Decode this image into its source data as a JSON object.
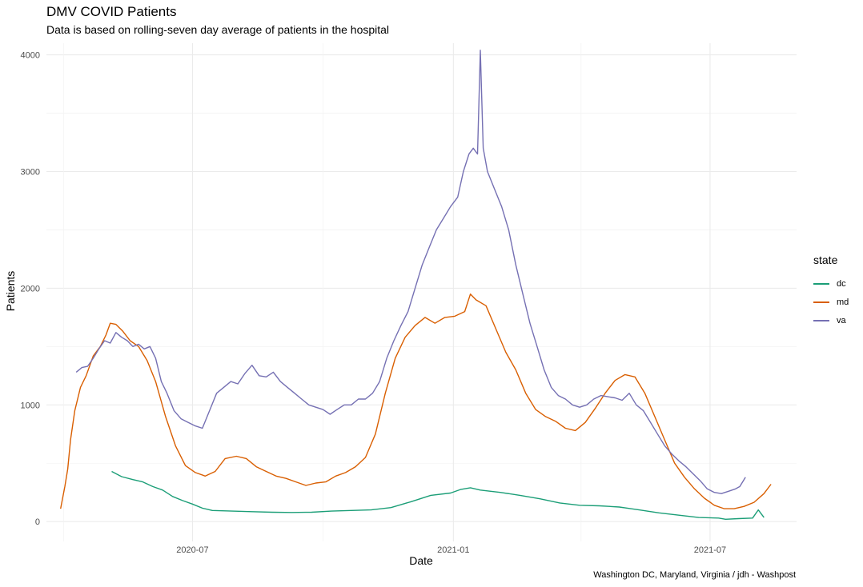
{
  "header": {
    "title": "DMV COVID Patients",
    "subtitle": "Data is based on rolling-seven day average of patients in the hospital"
  },
  "caption": "Washington DC, Maryland, Virginia / jdh - Washpost",
  "legend": {
    "title": "state",
    "items": [
      {
        "label": "dc",
        "color": "#1b9e77"
      },
      {
        "label": "md",
        "color": "#d95f02"
      },
      {
        "label": "va",
        "color": "#7570b3"
      }
    ]
  },
  "chart_data": {
    "type": "line",
    "xlabel": "Date",
    "ylabel": "Patients",
    "xlim": [
      "2020-03-20",
      "2021-08-31"
    ],
    "ylim": [
      -170,
      4100
    ],
    "grid": true,
    "legend_position": "right",
    "x_ticks": [
      {
        "value": "2020-07-01",
        "label": "2020-07"
      },
      {
        "value": "2021-01-01",
        "label": "2021-01"
      },
      {
        "value": "2021-07-01",
        "label": "2021-07"
      }
    ],
    "y_ticks": [
      0,
      1000,
      2000,
      3000,
      4000
    ],
    "series": [
      {
        "name": "dc",
        "color": "#1b9e77",
        "points": [
          [
            "2020-05-05",
            430
          ],
          [
            "2020-05-12",
            385
          ],
          [
            "2020-05-20",
            360
          ],
          [
            "2020-05-27",
            340
          ],
          [
            "2020-06-03",
            300
          ],
          [
            "2020-06-10",
            270
          ],
          [
            "2020-06-17",
            215
          ],
          [
            "2020-06-24",
            180
          ],
          [
            "2020-07-01",
            150
          ],
          [
            "2020-07-08",
            115
          ],
          [
            "2020-07-15",
            95
          ],
          [
            "2020-07-29",
            90
          ],
          [
            "2020-08-12",
            85
          ],
          [
            "2020-08-26",
            80
          ],
          [
            "2020-09-09",
            78
          ],
          [
            "2020-09-23",
            80
          ],
          [
            "2020-10-07",
            90
          ],
          [
            "2020-10-21",
            95
          ],
          [
            "2020-11-04",
            100
          ],
          [
            "2020-11-18",
            120
          ],
          [
            "2020-12-02",
            170
          ],
          [
            "2020-12-16",
            225
          ],
          [
            "2020-12-30",
            245
          ],
          [
            "2021-01-06",
            275
          ],
          [
            "2021-01-13",
            290
          ],
          [
            "2021-01-20",
            270
          ],
          [
            "2021-02-03",
            250
          ],
          [
            "2021-02-17",
            225
          ],
          [
            "2021-03-03",
            195
          ],
          [
            "2021-03-17",
            160
          ],
          [
            "2021-03-31",
            140
          ],
          [
            "2021-04-14",
            135
          ],
          [
            "2021-04-28",
            125
          ],
          [
            "2021-05-12",
            100
          ],
          [
            "2021-05-26",
            75
          ],
          [
            "2021-06-09",
            55
          ],
          [
            "2021-06-23",
            35
          ],
          [
            "2021-07-07",
            30
          ],
          [
            "2021-07-12",
            20
          ],
          [
            "2021-07-21",
            25
          ],
          [
            "2021-07-31",
            30
          ],
          [
            "2021-08-04",
            100
          ],
          [
            "2021-08-08",
            35
          ]
        ]
      },
      {
        "name": "md",
        "color": "#d95f02",
        "points": [
          [
            "2020-03-30",
            110
          ],
          [
            "2020-04-02",
            300
          ],
          [
            "2020-04-04",
            450
          ],
          [
            "2020-04-06",
            700
          ],
          [
            "2020-04-09",
            950
          ],
          [
            "2020-04-13",
            1150
          ],
          [
            "2020-04-17",
            1250
          ],
          [
            "2020-04-22",
            1420
          ],
          [
            "2020-04-27",
            1500
          ],
          [
            "2020-05-01",
            1600
          ],
          [
            "2020-05-04",
            1700
          ],
          [
            "2020-05-08",
            1690
          ],
          [
            "2020-05-13",
            1630
          ],
          [
            "2020-05-18",
            1550
          ],
          [
            "2020-05-24",
            1500
          ],
          [
            "2020-05-30",
            1380
          ],
          [
            "2020-06-05",
            1200
          ],
          [
            "2020-06-12",
            900
          ],
          [
            "2020-06-19",
            650
          ],
          [
            "2020-06-26",
            480
          ],
          [
            "2020-07-03",
            420
          ],
          [
            "2020-07-10",
            390
          ],
          [
            "2020-07-17",
            430
          ],
          [
            "2020-07-24",
            540
          ],
          [
            "2020-08-01",
            560
          ],
          [
            "2020-08-08",
            540
          ],
          [
            "2020-08-15",
            470
          ],
          [
            "2020-08-22",
            430
          ],
          [
            "2020-08-29",
            390
          ],
          [
            "2020-09-05",
            370
          ],
          [
            "2020-09-12",
            340
          ],
          [
            "2020-09-19",
            310
          ],
          [
            "2020-09-26",
            330
          ],
          [
            "2020-10-03",
            340
          ],
          [
            "2020-10-10",
            390
          ],
          [
            "2020-10-17",
            420
          ],
          [
            "2020-10-24",
            470
          ],
          [
            "2020-10-31",
            550
          ],
          [
            "2020-11-07",
            750
          ],
          [
            "2020-11-14",
            1100
          ],
          [
            "2020-11-21",
            1400
          ],
          [
            "2020-11-28",
            1580
          ],
          [
            "2020-12-05",
            1680
          ],
          [
            "2020-12-12",
            1750
          ],
          [
            "2020-12-19",
            1700
          ],
          [
            "2020-12-26",
            1750
          ],
          [
            "2021-01-02",
            1760
          ],
          [
            "2021-01-09",
            1800
          ],
          [
            "2021-01-13",
            1950
          ],
          [
            "2021-01-17",
            1900
          ],
          [
            "2021-01-24",
            1850
          ],
          [
            "2021-01-31",
            1650
          ],
          [
            "2021-02-07",
            1450
          ],
          [
            "2021-02-14",
            1300
          ],
          [
            "2021-02-21",
            1100
          ],
          [
            "2021-02-28",
            960
          ],
          [
            "2021-03-07",
            900
          ],
          [
            "2021-03-14",
            860
          ],
          [
            "2021-03-21",
            800
          ],
          [
            "2021-03-28",
            780
          ],
          [
            "2021-04-04",
            850
          ],
          [
            "2021-04-11",
            970
          ],
          [
            "2021-04-18",
            1100
          ],
          [
            "2021-04-25",
            1210
          ],
          [
            "2021-05-02",
            1260
          ],
          [
            "2021-05-09",
            1240
          ],
          [
            "2021-05-16",
            1100
          ],
          [
            "2021-05-23",
            900
          ],
          [
            "2021-05-30",
            700
          ],
          [
            "2021-06-06",
            500
          ],
          [
            "2021-06-13",
            380
          ],
          [
            "2021-06-20",
            280
          ],
          [
            "2021-06-27",
            200
          ],
          [
            "2021-07-04",
            140
          ],
          [
            "2021-07-11",
            110
          ],
          [
            "2021-07-18",
            110
          ],
          [
            "2021-07-25",
            130
          ],
          [
            "2021-08-01",
            165
          ],
          [
            "2021-08-08",
            240
          ],
          [
            "2021-08-13",
            320
          ]
        ]
      },
      {
        "name": "va",
        "color": "#7570b3",
        "points": [
          [
            "2020-04-10",
            1280
          ],
          [
            "2020-04-14",
            1320
          ],
          [
            "2020-04-18",
            1330
          ],
          [
            "2020-04-22",
            1400
          ],
          [
            "2020-04-26",
            1480
          ],
          [
            "2020-04-30",
            1550
          ],
          [
            "2020-05-04",
            1530
          ],
          [
            "2020-05-08",
            1620
          ],
          [
            "2020-05-12",
            1580
          ],
          [
            "2020-05-16",
            1550
          ],
          [
            "2020-05-20",
            1500
          ],
          [
            "2020-05-24",
            1520
          ],
          [
            "2020-05-28",
            1480
          ],
          [
            "2020-06-01",
            1500
          ],
          [
            "2020-06-05",
            1400
          ],
          [
            "2020-06-09",
            1200
          ],
          [
            "2020-06-13",
            1100
          ],
          [
            "2020-06-18",
            950
          ],
          [
            "2020-06-23",
            880
          ],
          [
            "2020-06-28",
            850
          ],
          [
            "2020-07-03",
            820
          ],
          [
            "2020-07-08",
            800
          ],
          [
            "2020-07-13",
            950
          ],
          [
            "2020-07-18",
            1100
          ],
          [
            "2020-07-23",
            1150
          ],
          [
            "2020-07-28",
            1200
          ],
          [
            "2020-08-02",
            1180
          ],
          [
            "2020-08-07",
            1270
          ],
          [
            "2020-08-12",
            1340
          ],
          [
            "2020-08-17",
            1250
          ],
          [
            "2020-08-22",
            1240
          ],
          [
            "2020-08-27",
            1280
          ],
          [
            "2020-09-01",
            1200
          ],
          [
            "2020-09-06",
            1150
          ],
          [
            "2020-09-11",
            1100
          ],
          [
            "2020-09-16",
            1050
          ],
          [
            "2020-09-21",
            1000
          ],
          [
            "2020-09-26",
            980
          ],
          [
            "2020-10-01",
            960
          ],
          [
            "2020-10-06",
            920
          ],
          [
            "2020-10-11",
            960
          ],
          [
            "2020-10-16",
            1000
          ],
          [
            "2020-10-21",
            1000
          ],
          [
            "2020-10-26",
            1050
          ],
          [
            "2020-10-31",
            1050
          ],
          [
            "2020-11-05",
            1100
          ],
          [
            "2020-11-10",
            1200
          ],
          [
            "2020-11-15",
            1400
          ],
          [
            "2020-11-20",
            1550
          ],
          [
            "2020-11-25",
            1680
          ],
          [
            "2020-11-30",
            1800
          ],
          [
            "2020-12-05",
            2000
          ],
          [
            "2020-12-10",
            2200
          ],
          [
            "2020-12-15",
            2350
          ],
          [
            "2020-12-20",
            2500
          ],
          [
            "2020-12-25",
            2600
          ],
          [
            "2020-12-30",
            2700
          ],
          [
            "2021-01-04",
            2780
          ],
          [
            "2021-01-08",
            3000
          ],
          [
            "2021-01-12",
            3150
          ],
          [
            "2021-01-15",
            3200
          ],
          [
            "2021-01-18",
            3150
          ],
          [
            "2021-01-20",
            4040
          ],
          [
            "2021-01-22",
            3200
          ],
          [
            "2021-01-25",
            3000
          ],
          [
            "2021-01-30",
            2850
          ],
          [
            "2021-02-04",
            2700
          ],
          [
            "2021-02-09",
            2500
          ],
          [
            "2021-02-14",
            2200
          ],
          [
            "2021-02-19",
            1950
          ],
          [
            "2021-02-24",
            1700
          ],
          [
            "2021-03-01",
            1500
          ],
          [
            "2021-03-06",
            1300
          ],
          [
            "2021-03-11",
            1150
          ],
          [
            "2021-03-16",
            1080
          ],
          [
            "2021-03-21",
            1050
          ],
          [
            "2021-03-26",
            1000
          ],
          [
            "2021-03-31",
            980
          ],
          [
            "2021-04-05",
            1000
          ],
          [
            "2021-04-10",
            1050
          ],
          [
            "2021-04-15",
            1080
          ],
          [
            "2021-04-20",
            1070
          ],
          [
            "2021-04-25",
            1060
          ],
          [
            "2021-04-30",
            1040
          ],
          [
            "2021-05-05",
            1100
          ],
          [
            "2021-05-10",
            1000
          ],
          [
            "2021-05-15",
            950
          ],
          [
            "2021-05-20",
            850
          ],
          [
            "2021-05-25",
            750
          ],
          [
            "2021-05-30",
            650
          ],
          [
            "2021-06-04",
            580
          ],
          [
            "2021-06-09",
            520
          ],
          [
            "2021-06-14",
            470
          ],
          [
            "2021-06-19",
            410
          ],
          [
            "2021-06-24",
            350
          ],
          [
            "2021-06-29",
            280
          ],
          [
            "2021-07-04",
            250
          ],
          [
            "2021-07-09",
            240
          ],
          [
            "2021-07-14",
            260
          ],
          [
            "2021-07-19",
            280
          ],
          [
            "2021-07-22",
            300
          ],
          [
            "2021-07-26",
            380
          ]
        ]
      }
    ]
  }
}
